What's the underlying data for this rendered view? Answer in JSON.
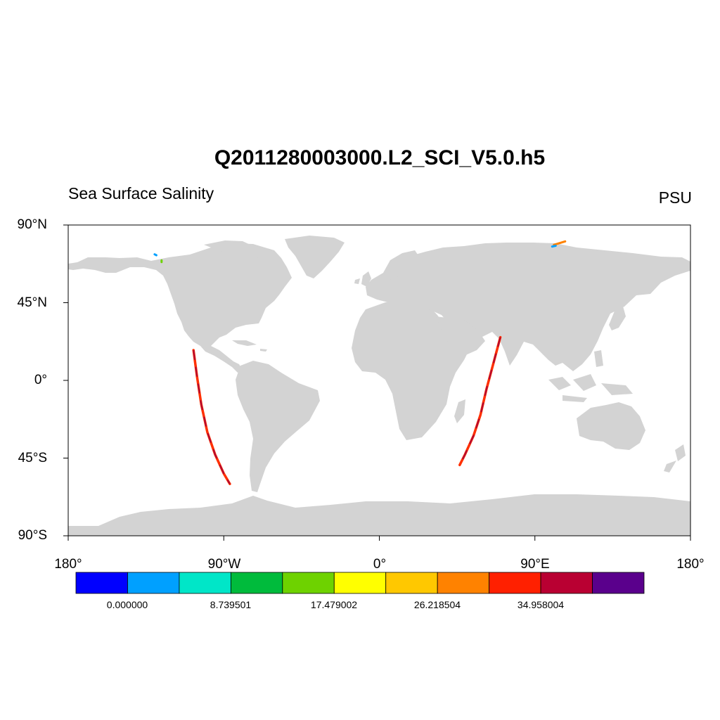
{
  "header": {
    "title": "Q2011280003000.L2_SCI_V5.0.h5",
    "left_subtitle": "Sea Surface Salinity",
    "right_subtitle": "PSU"
  },
  "axes": {
    "lat_ticks": [
      {
        "value": 90,
        "label": "90°N"
      },
      {
        "value": 45,
        "label": "45°N"
      },
      {
        "value": 0,
        "label": "0°"
      },
      {
        "value": -45,
        "label": "45°S"
      },
      {
        "value": -90,
        "label": "90°S"
      }
    ],
    "lon_ticks": [
      {
        "value": -180,
        "label": "180°"
      },
      {
        "value": -90,
        "label": "90°W"
      },
      {
        "value": 0,
        "label": "0°"
      },
      {
        "value": 90,
        "label": "90°E"
      },
      {
        "value": 180,
        "label": "180°"
      }
    ],
    "lon_range": [
      -180,
      180
    ],
    "lat_range": [
      -90,
      90
    ]
  },
  "colorbar": {
    "colors": [
      "#0000ff",
      "#00a0ff",
      "#00e6c8",
      "#00bb3c",
      "#6ed200",
      "#ffff00",
      "#ffc800",
      "#ff8200",
      "#ff2000",
      "#b90032",
      "#5a008c"
    ],
    "labels": [
      {
        "boundary": 1,
        "text": "0.000000"
      },
      {
        "boundary": 3,
        "text": "8.739501"
      },
      {
        "boundary": 5,
        "text": "17.479002"
      },
      {
        "boundary": 7,
        "text": "26.218504"
      },
      {
        "boundary": 9,
        "text": "34.958004"
      }
    ]
  },
  "colors": {
    "land": "#d3d3d3",
    "track_main": "#ff3000",
    "track_dark": "#a00040"
  },
  "map_data": {
    "projection": "cylindrical-equidistant",
    "swaths": [
      {
        "name": "pacific-swath",
        "points": [
          [
            -107.5,
            17.5
          ],
          [
            -105.5,
            2.5
          ],
          [
            -103,
            -14
          ],
          [
            -99.5,
            -30
          ],
          [
            -95,
            -43
          ],
          [
            -90,
            -54
          ],
          [
            -86.5,
            -60
          ]
        ]
      },
      {
        "name": "indian-swath",
        "points": [
          [
            70,
            25
          ],
          [
            66,
            10
          ],
          [
            62,
            -5
          ],
          [
            58.5,
            -20
          ],
          [
            54.5,
            -32
          ],
          [
            49.5,
            -43
          ],
          [
            46.5,
            -49
          ]
        ]
      }
    ],
    "arctic_fragments": [
      {
        "name": "arctic-fragment-ne",
        "points": [
          [
            101,
            78.5
          ],
          [
            107.5,
            80.5
          ]
        ],
        "color": "#ff8200"
      },
      {
        "name": "arctic-fragment-ne-2",
        "points": [
          [
            100,
            77.5
          ],
          [
            102,
            78
          ]
        ],
        "color": "#00a0ff"
      },
      {
        "name": "arctic-fragment-nw-1",
        "points": [
          [
            -130,
            73
          ],
          [
            -129,
            72.5
          ]
        ],
        "color": "#00a0ff"
      },
      {
        "name": "arctic-fragment-nw-2",
        "points": [
          [
            -126,
            69.5
          ],
          [
            -126,
            68.5
          ]
        ],
        "color": "#6ed200"
      }
    ]
  }
}
